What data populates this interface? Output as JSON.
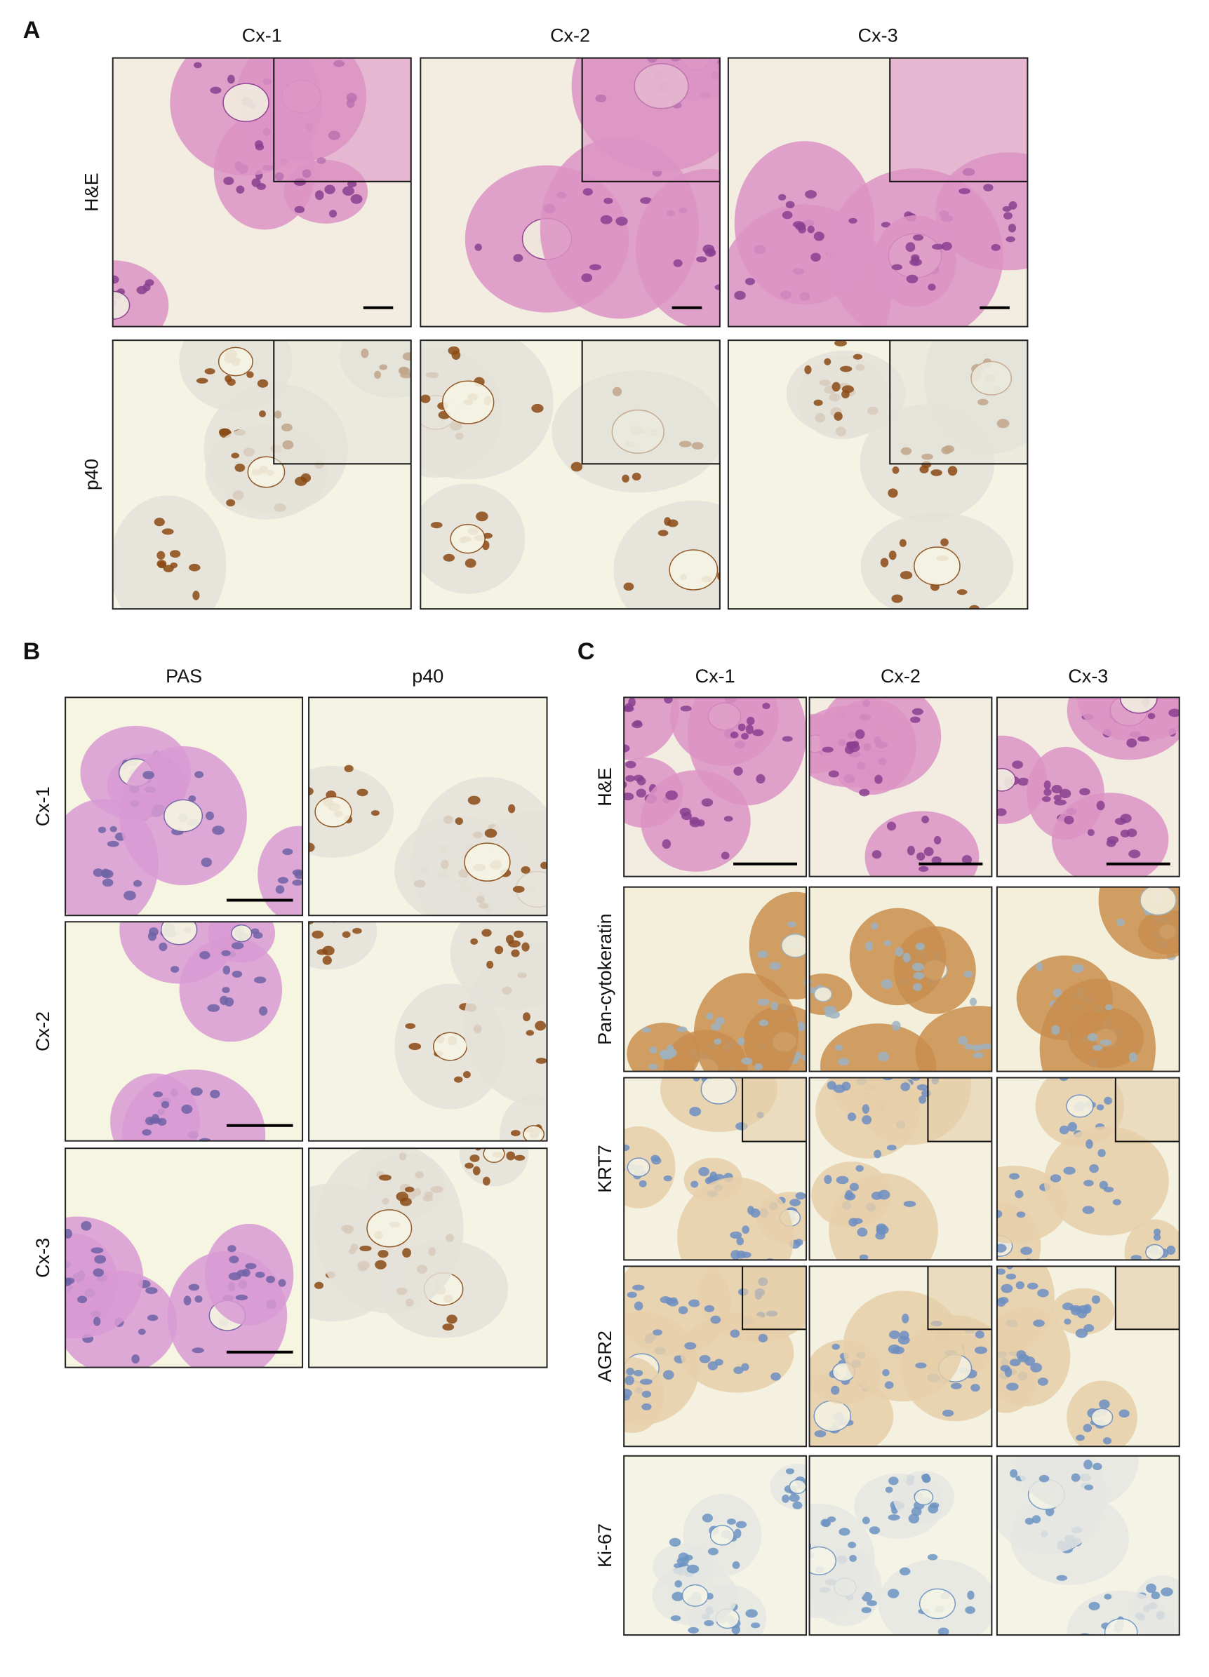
{
  "panels": [
    {
      "label": "A",
      "columns": [
        "Cx-1",
        "Cx-2",
        "Cx-3"
      ],
      "rows": [
        "H&E",
        "p40"
      ]
    },
    {
      "label": "B",
      "columns": [
        "PAS",
        "p40"
      ],
      "rows": [
        "Cx-1",
        "Cx-2",
        "Cx-3"
      ]
    },
    {
      "label": "C",
      "columns": [
        "Cx-1",
        "Cx-2",
        "Cx-3"
      ],
      "rows": [
        "H&E",
        "Pan-cytokeratin",
        "KRT7",
        "AGR2",
        "Ki-67"
      ]
    }
  ]
}
